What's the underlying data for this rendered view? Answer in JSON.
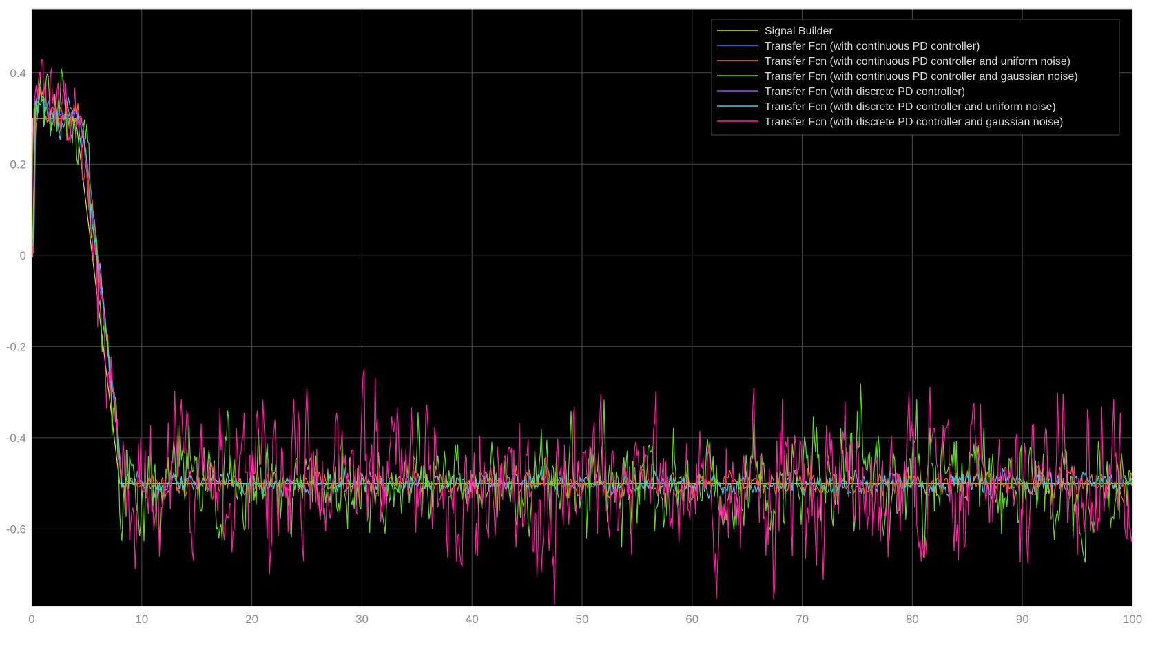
{
  "chart_data": {
    "type": "line",
    "title": "",
    "xlabel": "",
    "ylabel": "",
    "xlim": [
      0,
      100
    ],
    "ylim": [
      -0.77,
      0.54
    ],
    "x_ticks": [
      0,
      10,
      20,
      30,
      40,
      50,
      60,
      70,
      80,
      90,
      100
    ],
    "x_tick_labels": [
      "0",
      "10",
      "20",
      "30",
      "40",
      "50",
      "60",
      "70",
      "80",
      "90",
      "100"
    ],
    "y_ticks": [
      -0.6,
      -0.4,
      -0.2,
      0,
      0.2,
      0.4
    ],
    "y_tick_labels": [
      "-0.6",
      "-0.4",
      "-0.2",
      "0",
      "0.2",
      "0.4"
    ],
    "grid": true,
    "legend_position": "top-right",
    "background": "#000000",
    "grid_color": "#4a4a4a",
    "reference_path": {
      "x": [
        0,
        0.2,
        0.6,
        1.0,
        2.0,
        3.0,
        4.0,
        4.6,
        5.0,
        5.6,
        6.0,
        6.6,
        7.0,
        7.6,
        8.0,
        100
      ],
      "y": [
        0.0,
        0.33,
        0.36,
        0.33,
        0.31,
        0.305,
        0.3,
        0.25,
        0.18,
        0.05,
        -0.05,
        -0.16,
        -0.26,
        -0.36,
        -0.5,
        -0.5
      ]
    },
    "series": [
      {
        "name": "Signal Builder",
        "color": "#e6e600",
        "noise": 0,
        "noise_before_8": 0,
        "lag": 0,
        "seed": 1,
        "step_signal": true
      },
      {
        "name": "Transfer Fcn (with continuous PD controller)",
        "color": "#1e90ff",
        "noise": 0,
        "noise_before_8": 0.008,
        "lag": 0.15,
        "seed": 2,
        "step_signal": false
      },
      {
        "name": "Transfer Fcn (with continuous PD controller and uniform noise)",
        "color": "#ff6a2a",
        "noise": 0.012,
        "noise_before_8": 0.02,
        "lag": 0.15,
        "seed": 3,
        "step_signal": false
      },
      {
        "name": "Transfer Fcn (with continuous PD controller and gaussian noise)",
        "color": "#66dd11",
        "noise": 0.045,
        "noise_before_8": 0.04,
        "lag": 0.1,
        "seed": 4,
        "step_signal": false
      },
      {
        "name": "Transfer Fcn (with discrete PD controller)",
        "color": "#a24cff",
        "noise": 0,
        "noise_before_8": 0.005,
        "lag": 0.2,
        "seed": 5,
        "step_signal": false
      },
      {
        "name": "Transfer Fcn (with discrete PD controller and uniform noise)",
        "color": "#2ad4f0",
        "noise": 0.01,
        "noise_before_8": 0.02,
        "lag": 0.15,
        "seed": 6,
        "step_signal": false
      },
      {
        "name": "Transfer Fcn (with discrete PD controller and gaussian noise)",
        "color": "#ff1ea8",
        "noise": 0.065,
        "noise_before_8": 0.05,
        "lag": 0.05,
        "seed": 7,
        "step_signal": false
      }
    ]
  }
}
